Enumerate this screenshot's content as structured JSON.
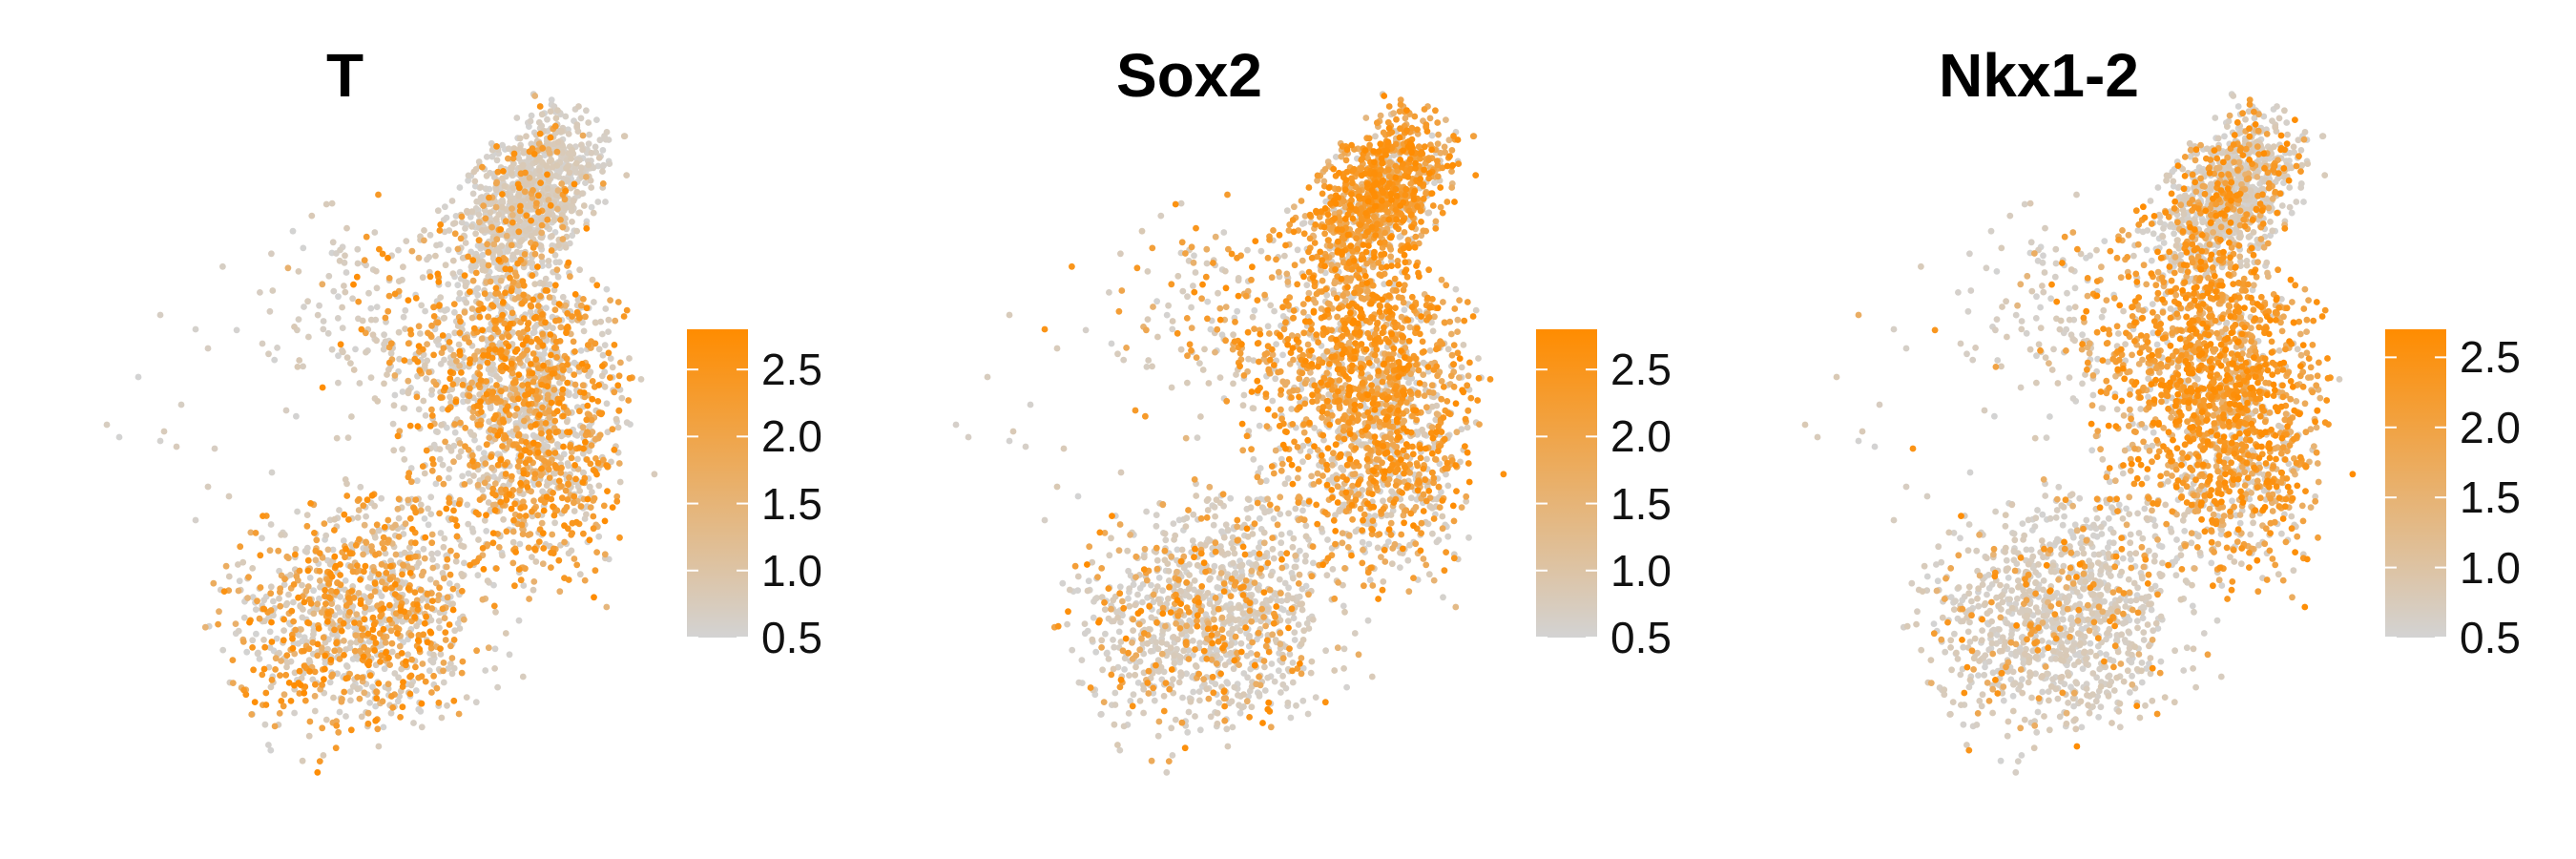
{
  "chart_data": [
    {
      "type": "scatter",
      "title": "T",
      "legend": {
        "min": 0.5,
        "max": 2.8,
        "ticks": [
          "0.5",
          "1.0",
          "1.5",
          "2.0",
          "2.5"
        ],
        "low_color": "#d3d3d3",
        "high_color": "#ff8c00"
      },
      "pattern": "T"
    },
    {
      "type": "scatter",
      "title": "Sox2",
      "legend": {
        "min": 0.5,
        "max": 2.8,
        "ticks": [
          "0.5",
          "1.0",
          "1.5",
          "2.0",
          "2.5"
        ],
        "low_color": "#d3d3d3",
        "high_color": "#ff8c00"
      },
      "pattern": "Sox2"
    },
    {
      "type": "scatter",
      "title": "Nkx1-2",
      "legend": {
        "min": 0.5,
        "max": 2.7,
        "ticks": [
          "0.5",
          "1.0",
          "1.5",
          "2.0",
          "2.5"
        ],
        "low_color": "#d3d3d3",
        "high_color": "#ff8c00"
      },
      "pattern": "Nkx"
    }
  ]
}
